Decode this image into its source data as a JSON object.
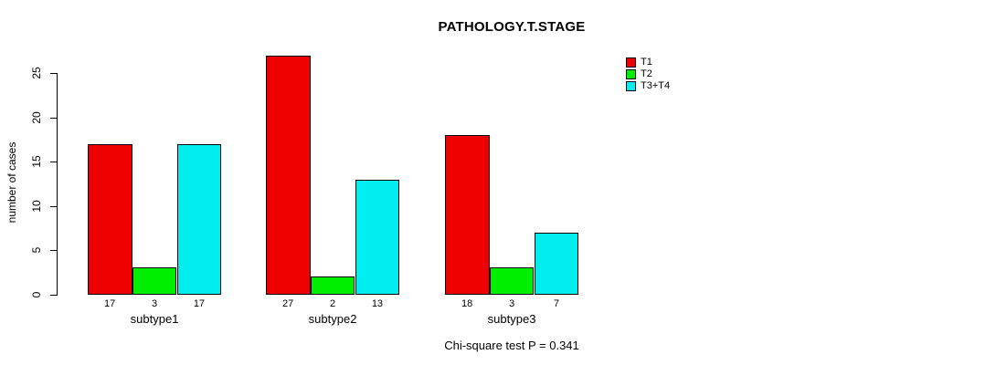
{
  "title": "PATHOLOGY.T.STAGE",
  "chart_data": {
    "type": "bar",
    "title": "PATHOLOGY.T.STAGE",
    "xlabel": "",
    "ylabel": "number of cases",
    "categories": [
      "subtype1",
      "subtype2",
      "subtype3"
    ],
    "series": [
      {
        "name": "T1",
        "color": "#EE0000",
        "values": [
          17,
          27,
          18
        ]
      },
      {
        "name": "T2",
        "color": "#00EE00",
        "values": [
          3,
          2,
          3
        ]
      },
      {
        "name": "T3+T4",
        "color": "#00EEEE",
        "values": [
          17,
          13,
          7
        ]
      }
    ],
    "bar_value_labels": [
      [
        "17",
        "3",
        "17"
      ],
      [
        "27",
        "2",
        "13"
      ],
      [
        "18",
        "3",
        "7"
      ]
    ],
    "yticks": [
      0,
      5,
      10,
      15,
      20,
      25
    ],
    "ylim": [
      0,
      27
    ],
    "grid": false,
    "legend_position": "top-right",
    "annotation": "Chi-square test P = 0.341"
  }
}
